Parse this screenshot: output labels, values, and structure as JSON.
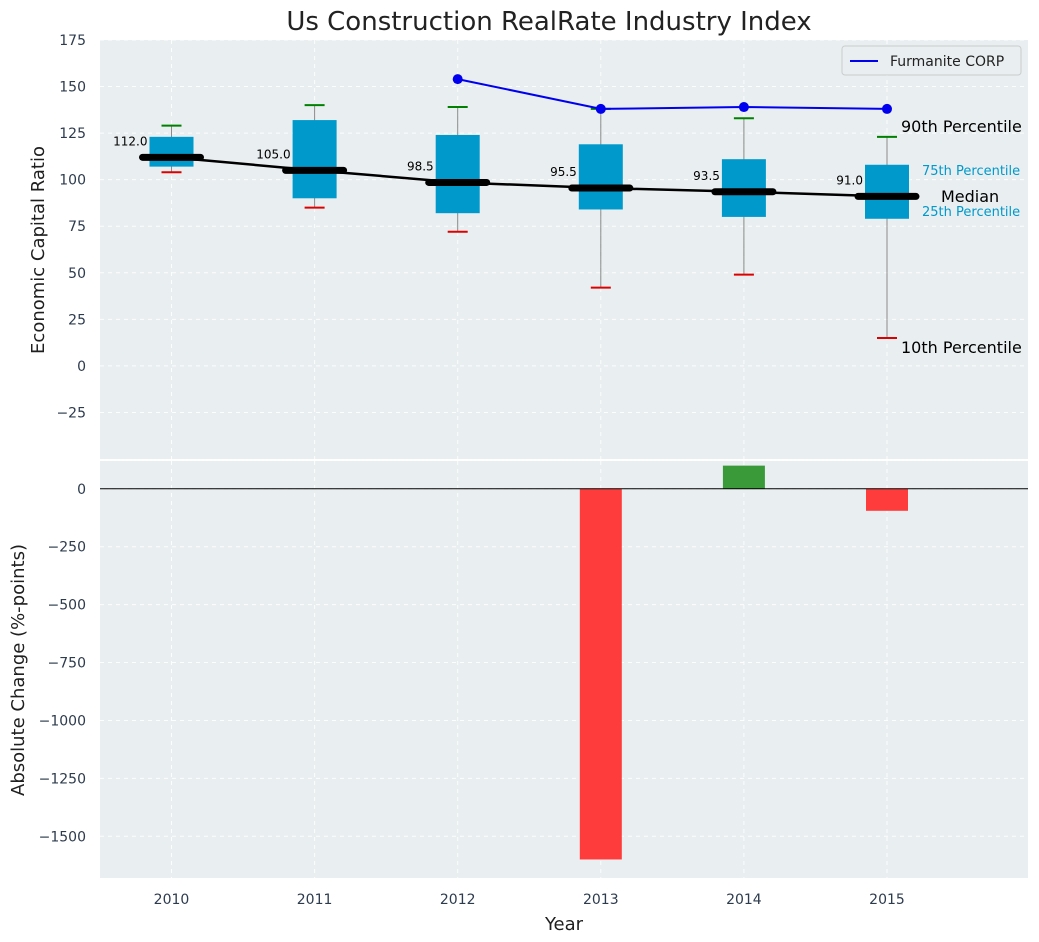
{
  "chart_data": [
    {
      "type": "box",
      "title": "Us Construction RealRate Industry Index",
      "ylabel": "Economic Capital Ratio",
      "categories": [
        "2010",
        "2011",
        "2012",
        "2013",
        "2014",
        "2015"
      ],
      "ylim": [
        -50,
        175
      ],
      "yticks": [
        -25,
        0,
        25,
        50,
        75,
        100,
        125,
        150,
        175
      ],
      "ytick_labels": [
        "−25",
        "0",
        "25",
        "50",
        "75",
        "100",
        "125",
        "150",
        "175"
      ],
      "p10": [
        104,
        85,
        72,
        42,
        49,
        15
      ],
      "p25": [
        107,
        90,
        82,
        84,
        80,
        79
      ],
      "median": [
        112.0,
        105.0,
        98.5,
        95.5,
        93.5,
        91.0
      ],
      "median_labels": [
        "112.0",
        "105.0",
        "98.5",
        "95.5",
        "93.5",
        "91.0"
      ],
      "p75": [
        123,
        132,
        124,
        119,
        111,
        108
      ],
      "p90": [
        129,
        140,
        139,
        138,
        133,
        123
      ],
      "series": [
        {
          "name": "Furmanite CORP",
          "x": [
            "2012",
            "2013",
            "2014",
            "2015"
          ],
          "values": [
            154,
            138,
            139,
            138
          ]
        }
      ],
      "annotations": {
        "p90": "90th Percentile",
        "p75": "75th Percentile",
        "median": "Median",
        "p25": "25th Percentile",
        "p10": "10th Percentile"
      },
      "legend_position": "top-right",
      "grid": true
    },
    {
      "type": "bar",
      "ylabel": "Absolute Change (%-points)",
      "xlabel": "Year",
      "categories": [
        "2010",
        "2011",
        "2012",
        "2013",
        "2014",
        "2015"
      ],
      "values": [
        null,
        null,
        null,
        -1600,
        100,
        -95
      ],
      "ylim": [
        -1680,
        120
      ],
      "yticks": [
        0,
        -250,
        -500,
        -750,
        -1000,
        -1250,
        -1500
      ],
      "ytick_labels": [
        "0",
        "−250",
        "−500",
        "−750",
        "−1000",
        "−1250",
        "−1500"
      ],
      "grid": true
    }
  ],
  "colors": {
    "background": "#e9eef0",
    "box": "#0099cc",
    "median_line": "#000000",
    "p90_cap": "#008000",
    "p10_cap": "#dd0000",
    "whisker": "#8a8a8a",
    "series_line": "#0000ee",
    "bar_positive": "#3a9a3a",
    "bar_negative": "#ff3c3c"
  }
}
